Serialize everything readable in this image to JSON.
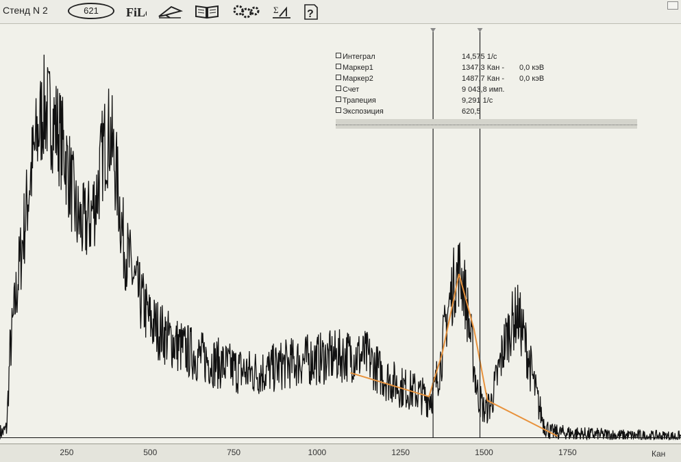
{
  "toolbar": {
    "stand_label": "Стенд N 2",
    "counter_value": "621",
    "buttons": [
      {
        "name": "file-icon",
        "label": "File"
      },
      {
        "name": "paper-plane-icon",
        "label": ""
      },
      {
        "name": "book-icon",
        "label": ""
      },
      {
        "name": "gears-icon",
        "label": ""
      },
      {
        "name": "sum-icon",
        "label": "Σ"
      },
      {
        "name": "help-icon",
        "label": "?"
      }
    ]
  },
  "info_panel": {
    "rows": [
      {
        "label": "Интеграл",
        "value": "14,575 1/с",
        "extra": ""
      },
      {
        "label": "Маркер1",
        "value": "1347,3 Кан -",
        "extra": "0,0 кэВ"
      },
      {
        "label": "Маркер2",
        "value": "1487,7 Кан -",
        "extra": "0,0 кэВ"
      },
      {
        "label": "Счет",
        "value": "9 043,8 имп.",
        "extra": ""
      },
      {
        "label": "Трапеция",
        "value": "9,291 1/с",
        "extra": ""
      },
      {
        "label": "Экспозиция",
        "value": "620,5",
        "extra": ""
      }
    ]
  },
  "chart_data": {
    "type": "line",
    "xlabel": "Кан",
    "ylabel": "",
    "x_ticks": [
      "250",
      "500",
      "750",
      "1000",
      "1250",
      "1500",
      "1750"
    ],
    "xlim": [
      50,
      2090
    ],
    "ylim": [
      0,
      100
    ],
    "series": [
      {
        "x": [
          50,
          60,
          70,
          80,
          100,
          120,
          140,
          160,
          180,
          200,
          220,
          240,
          260,
          280,
          300,
          320,
          340,
          360,
          380,
          400,
          420,
          440,
          460,
          480,
          500,
          550,
          600,
          650,
          700,
          750,
          800,
          850,
          900,
          950,
          1000,
          1050,
          1100,
          1150,
          1200,
          1250,
          1300,
          1330,
          1350,
          1370,
          1390,
          1410,
          1425,
          1440,
          1460,
          1480,
          1500,
          1520,
          1540,
          1560,
          1580,
          1600,
          1620,
          1640,
          1660,
          1680,
          1700,
          1750,
          1800,
          1900,
          2000,
          2090
        ],
        "y": [
          2,
          2,
          3,
          22,
          38,
          52,
          66,
          76,
          84,
          82,
          79,
          74,
          66,
          56,
          54,
          56,
          62,
          74,
          78,
          66,
          50,
          44,
          38,
          34,
          30,
          26,
          23,
          21,
          19.5,
          18,
          17,
          17.5,
          19,
          20,
          20.5,
          21,
          21.5,
          21,
          16,
          13.5,
          12,
          10.5,
          12,
          20,
          32,
          40,
          43,
          39,
          26,
          12,
          7.5,
          9,
          16,
          24,
          29,
          32,
          26,
          18,
          10,
          4,
          2,
          1.8,
          1.5,
          1.2,
          1.0,
          0.9
        ]
      }
    ],
    "markers": [
      1347.3,
      1487.7
    ],
    "trapezoid_line": {
      "x": [
        1100,
        1335,
        1375,
        1425,
        1470,
        1510,
        1720
      ],
      "y": [
        17,
        11,
        22,
        42,
        28,
        10,
        1
      ]
    },
    "grid": false,
    "colors": {
      "spectrum": "#111111",
      "fit": "#e8923c",
      "marker": "#222222"
    }
  }
}
